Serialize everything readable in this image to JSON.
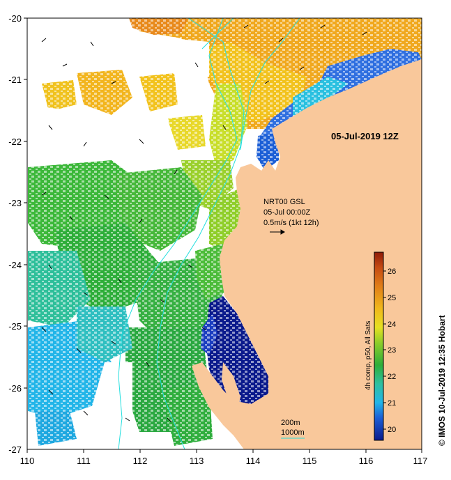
{
  "map": {
    "x_ticks": [
      "110",
      "111",
      "112",
      "113",
      "114",
      "115",
      "116",
      "117"
    ],
    "y_ticks": [
      "-20",
      "-21",
      "-22",
      "-23",
      "-24",
      "-25",
      "-26",
      "-27"
    ],
    "lon_range": [
      110,
      117
    ],
    "lat_range": [
      -27,
      -20
    ],
    "land_color": "#f9c89b",
    "isobath_color": "#22dede"
  },
  "annotations": {
    "datetime": "05-Jul-2019 12Z",
    "current_source": "NRT00 GSL",
    "current_date": "05-Jul 00:00Z",
    "current_scale": "0.5m/s (1kt 12h)",
    "depth_label_1": "200m",
    "depth_label_2": "1000m"
  },
  "colorbar": {
    "title": "4h comp, p50, All Sats",
    "ticks": [
      "20",
      "21",
      "22",
      "23",
      "24",
      "25",
      "26"
    ],
    "range": [
      19.6,
      26.7
    ]
  },
  "credit": "© IMOS 10-Jul-2019 12:35 Hobart"
}
